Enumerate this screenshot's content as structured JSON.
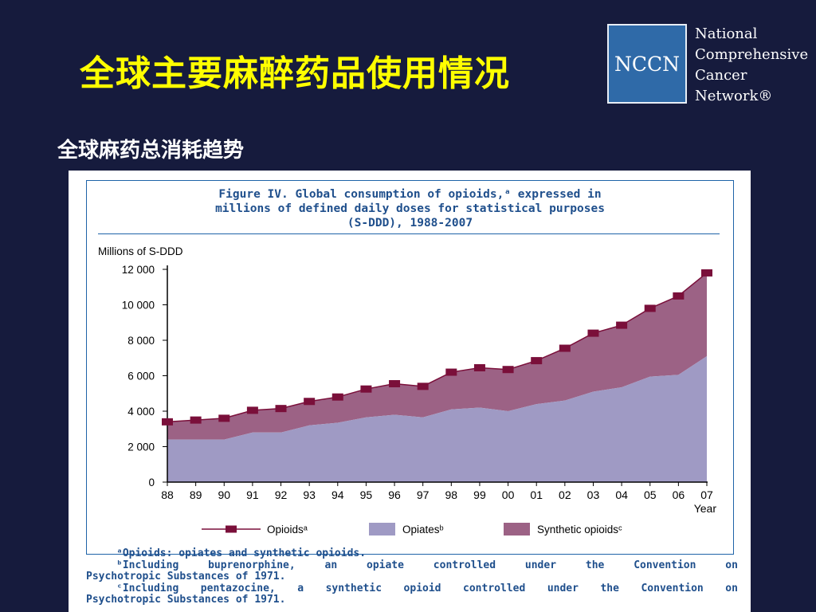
{
  "slide": {
    "title": "全球主要麻醉药品使用情况",
    "subtitle": "全球麻药总消耗趋势"
  },
  "logo": {
    "abbr": "NCCN",
    "lines": [
      "National",
      "Comprehensive",
      "Cancer",
      "Network®"
    ]
  },
  "figure": {
    "title_lines": [
      "Figure IV.   Global consumption of opioids,ᵃ expressed in",
      "millions of defined daily doses for statistical purposes",
      "(S-DDD), 1988-2007"
    ],
    "footnotes": {
      "a": "ᵃOpioids: opiates and synthetic opioids.",
      "b_line1": "ᵇIncluding buprenorphine, an opiate controlled under the Convention on",
      "b_line2": "Psychotropic Substances of 1971.",
      "c_line1": "ᶜIncluding pentazocine, a synthetic opioid controlled under the Convention on",
      "c_line2": "Psychotropic Substances of 1971."
    }
  },
  "chart_data": {
    "type": "area",
    "ylabel": "Millions of S-DDD",
    "xlabel": "Year",
    "x": [
      "88",
      "89",
      "90",
      "91",
      "92",
      "93",
      "94",
      "95",
      "96",
      "97",
      "98",
      "99",
      "00",
      "01",
      "02",
      "03",
      "04",
      "05",
      "06",
      "07"
    ],
    "ylim": [
      0,
      12000
    ],
    "yticks": [
      0,
      2000,
      4000,
      6000,
      8000,
      10000,
      12000
    ],
    "ytick_labels": [
      "0",
      "2 000",
      "4 000",
      "6 000",
      "8 000",
      "10 000",
      "12 000"
    ],
    "grid": false,
    "legend_position": "bottom",
    "series": [
      {
        "name": "Opioidsᵃ",
        "kind": "line-markers",
        "color": "#7a0f3a",
        "values": [
          3400,
          3500,
          3600,
          4050,
          4150,
          4550,
          4800,
          5250,
          5550,
          5400,
          6200,
          6450,
          6350,
          6850,
          7550,
          8400,
          8850,
          9800,
          10500,
          11800
        ]
      },
      {
        "name": "Opiatesᵇ",
        "kind": "area",
        "color": "#9f9ac4",
        "values": [
          2400,
          2400,
          2400,
          2800,
          2800,
          3200,
          3350,
          3650,
          3800,
          3650,
          4100,
          4200,
          4000,
          4400,
          4600,
          5100,
          5350,
          5950,
          6050,
          7100
        ]
      },
      {
        "name": "Synthetic opioidsᶜ",
        "kind": "area-stacked-remainder",
        "color": "#9c6285"
      }
    ]
  }
}
